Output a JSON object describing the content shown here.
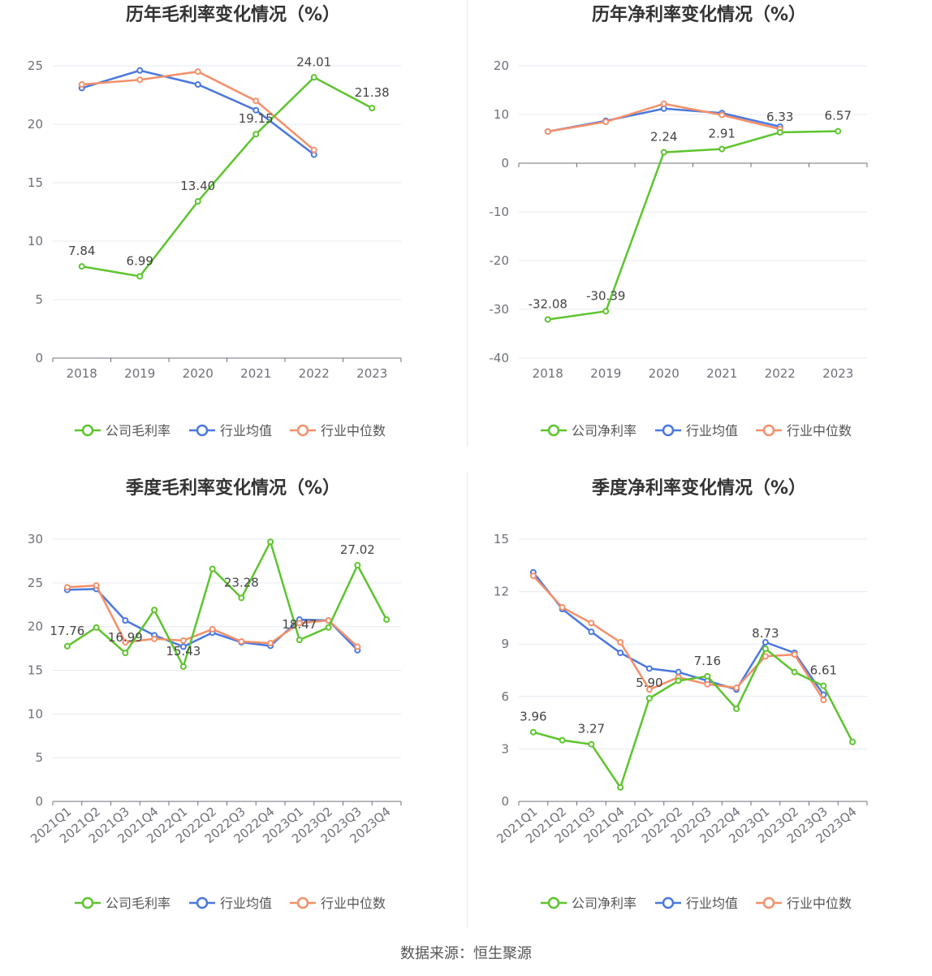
{
  "colors": {
    "company": "#5ec42e",
    "avg": "#4a78e0",
    "median": "#f4906a",
    "grid": "#e6e9f2",
    "axis": "#6e7079"
  },
  "source_text": "数据来源：恒生聚源",
  "chart_data": [
    {
      "type": "line",
      "title": "历年毛利率变化情况（%）",
      "categories": [
        "2018",
        "2019",
        "2020",
        "2021",
        "2022",
        "2023"
      ],
      "ylim": [
        0,
        25
      ],
      "yticks": [
        0,
        5,
        10,
        15,
        20,
        25
      ],
      "rotate_x": false,
      "series": [
        {
          "name": "公司毛利率",
          "color_key": "company",
          "values": [
            7.84,
            6.99,
            13.4,
            19.15,
            24.01,
            21.38
          ],
          "labels": [
            "7.84",
            "6.99",
            "13.40",
            "19.15",
            "24.01",
            "21.38"
          ]
        },
        {
          "name": "行业均值",
          "color_key": "avg",
          "values": [
            23.1,
            24.6,
            23.4,
            21.2,
            17.4,
            null
          ]
        },
        {
          "name": "行业中位数",
          "color_key": "median",
          "values": [
            23.4,
            23.8,
            24.5,
            22.0,
            17.8,
            null
          ]
        }
      ],
      "legend": "bottom",
      "grid": true
    },
    {
      "type": "line",
      "title": "历年净利率变化情况（%）",
      "categories": [
        "2018",
        "2019",
        "2020",
        "2021",
        "2022",
        "2023"
      ],
      "ylim": [
        -40,
        20
      ],
      "yticks": [
        -40,
        -30,
        -20,
        -10,
        0,
        10,
        20
      ],
      "rotate_x": false,
      "series": [
        {
          "name": "公司净利率",
          "color_key": "company",
          "values": [
            -32.08,
            -30.39,
            2.24,
            2.91,
            6.33,
            6.57
          ],
          "labels": [
            "-32.08",
            "-30.39",
            "2.24",
            "2.91",
            "6.33",
            "6.57"
          ]
        },
        {
          "name": "行业均值",
          "color_key": "avg",
          "values": [
            6.5,
            8.7,
            11.2,
            10.3,
            7.5,
            null
          ]
        },
        {
          "name": "行业中位数",
          "color_key": "median",
          "values": [
            6.5,
            8.5,
            12.2,
            9.9,
            7.0,
            null
          ]
        }
      ],
      "legend": "bottom",
      "grid": true
    },
    {
      "type": "line",
      "title": "季度毛利率变化情况（%）",
      "categories": [
        "2021Q1",
        "2021Q2",
        "2021Q3",
        "2021Q4",
        "2022Q1",
        "2022Q2",
        "2022Q3",
        "2022Q4",
        "2023Q1",
        "2023Q2",
        "2023Q3",
        "2023Q4"
      ],
      "ylim": [
        0,
        30
      ],
      "yticks": [
        0,
        5,
        10,
        15,
        20,
        25,
        30
      ],
      "rotate_x": true,
      "series": [
        {
          "name": "公司毛利率",
          "color_key": "company",
          "values": [
            17.76,
            19.9,
            16.99,
            21.9,
            15.43,
            26.6,
            23.28,
            29.7,
            18.47,
            19.9,
            27.02,
            20.8
          ],
          "labels": [
            "17.76",
            "",
            "16.99",
            "",
            "15.43",
            "",
            "23.28",
            "",
            "18.47",
            "",
            "27.02",
            ""
          ]
        },
        {
          "name": "行业均值",
          "color_key": "avg",
          "values": [
            24.2,
            24.3,
            20.7,
            19.0,
            17.7,
            19.3,
            18.2,
            17.8,
            20.8,
            20.7,
            17.3,
            null
          ]
        },
        {
          "name": "行业中位数",
          "color_key": "median",
          "values": [
            24.5,
            24.7,
            18.2,
            18.6,
            18.4,
            19.7,
            18.3,
            18.1,
            20.4,
            20.7,
            17.7,
            null
          ]
        }
      ],
      "legend": "bottom",
      "grid": true
    },
    {
      "type": "line",
      "title": "季度净利率变化情况（%）",
      "categories": [
        "2021Q1",
        "2021Q2",
        "2021Q3",
        "2021Q4",
        "2022Q1",
        "2022Q2",
        "2022Q3",
        "2022Q4",
        "2023Q1",
        "2023Q2",
        "2023Q3",
        "2023Q4"
      ],
      "ylim": [
        0,
        15
      ],
      "yticks": [
        0,
        3,
        6,
        9,
        12,
        15
      ],
      "rotate_x": true,
      "series": [
        {
          "name": "公司净利率",
          "color_key": "company",
          "values": [
            3.96,
            3.5,
            3.27,
            0.8,
            5.9,
            6.9,
            7.16,
            5.3,
            8.73,
            7.4,
            6.61,
            3.4
          ],
          "labels": [
            "3.96",
            "",
            "3.27",
            "",
            "5.90",
            "",
            "7.16",
            "",
            "8.73",
            "",
            "6.61",
            ""
          ]
        },
        {
          "name": "行业均值",
          "color_key": "avg",
          "values": [
            13.1,
            11.0,
            9.7,
            8.5,
            7.6,
            7.4,
            6.9,
            6.4,
            9.1,
            8.5,
            6.1,
            null
          ]
        },
        {
          "name": "行业中位数",
          "color_key": "median",
          "values": [
            12.9,
            11.1,
            10.2,
            9.1,
            6.4,
            7.1,
            6.7,
            6.5,
            8.3,
            8.4,
            5.8,
            null
          ]
        }
      ],
      "legend": "bottom",
      "grid": true
    }
  ]
}
